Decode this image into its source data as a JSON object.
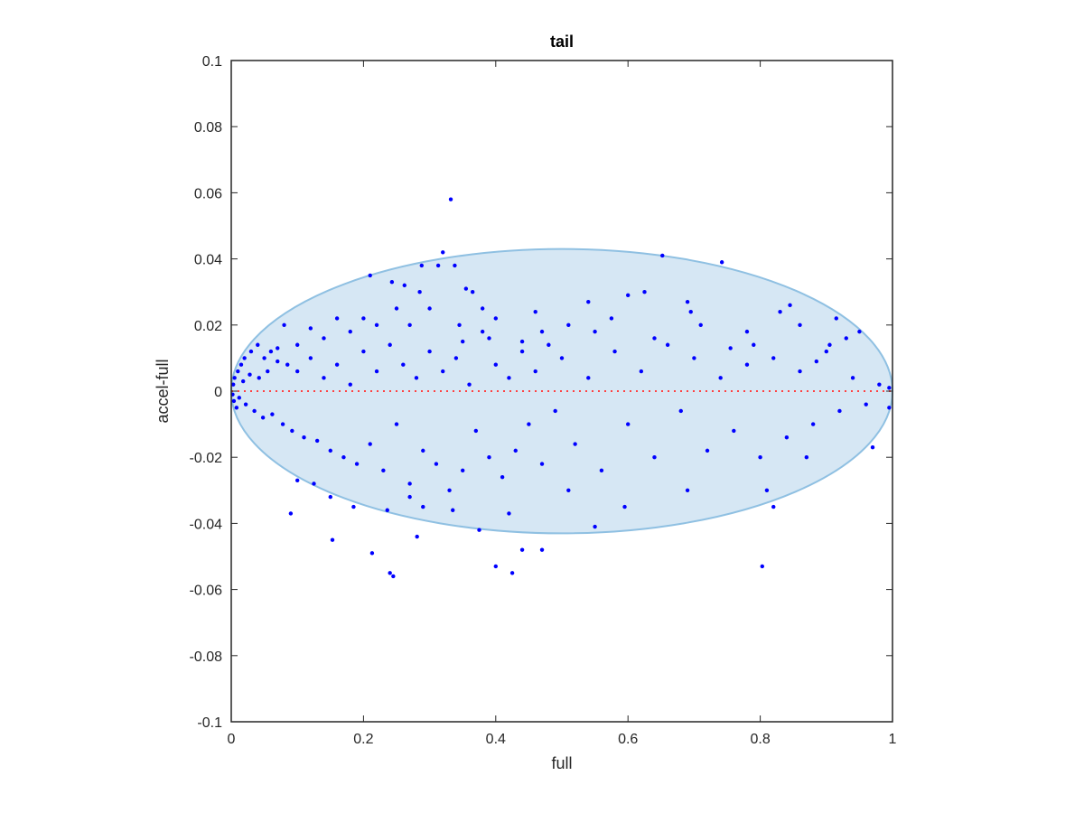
{
  "chart_data": {
    "type": "scatter",
    "title": "tail",
    "xlabel": "full",
    "ylabel": "accel-full",
    "xlim": [
      0,
      1
    ],
    "ylim": [
      -0.1,
      0.1
    ],
    "x_ticks": [
      0,
      0.2,
      0.4,
      0.6,
      0.8,
      1
    ],
    "x_tick_labels": [
      "0",
      "0.2",
      "0.4",
      "0.6",
      "0.8",
      "1"
    ],
    "y_ticks": [
      -0.1,
      -0.08,
      -0.06,
      -0.04,
      -0.02,
      0,
      0.02,
      0.04,
      0.06,
      0.08,
      0.1
    ],
    "y_tick_labels": [
      "-0.1",
      "-0.08",
      "-0.06",
      "-0.04",
      "-0.02",
      "0",
      "0.02",
      "0.04",
      "0.06",
      "0.08",
      "0.1"
    ],
    "grid": false,
    "colors": {
      "points": "#0000ff",
      "ellipse_fill": "#d6e7f4",
      "ellipse_stroke": "#8fc0e2",
      "reference_line": "#ff4040",
      "axes": "#262626"
    },
    "ellipse": {
      "center": [
        0.5,
        0
      ],
      "semi_x": 0.5,
      "semi_y": 0.043
    },
    "reference_line": {
      "y": 0,
      "style": "dotted"
    },
    "series": [
      {
        "points": [
          [
            0.332,
            0.058
          ],
          [
            0.32,
            0.042
          ],
          [
            0.338,
            0.038
          ],
          [
            0.652,
            0.041
          ],
          [
            0.742,
            0.039
          ],
          [
            0.313,
            0.038
          ],
          [
            0.288,
            0.038
          ],
          [
            0.21,
            0.035
          ],
          [
            0.243,
            0.033
          ],
          [
            0.262,
            0.032
          ],
          [
            0.355,
            0.031
          ],
          [
            0.46,
            0.024
          ],
          [
            0.6,
            0.029
          ],
          [
            0.625,
            0.03
          ],
          [
            0.69,
            0.027
          ],
          [
            0.695,
            0.024
          ],
          [
            0.78,
            0.018
          ],
          [
            0.83,
            0.024
          ],
          [
            0.86,
            0.02
          ],
          [
            0.915,
            0.022
          ],
          [
            0.93,
            0.016
          ],
          [
            0.95,
            0.018
          ],
          [
            0.54,
            0.027
          ],
          [
            0.51,
            0.02
          ],
          [
            0.47,
            0.018
          ],
          [
            0.4,
            0.022
          ],
          [
            0.38,
            0.025
          ],
          [
            0.35,
            0.015
          ],
          [
            0.3,
            0.025
          ],
          [
            0.27,
            0.02
          ],
          [
            0.25,
            0.025
          ],
          [
            0.22,
            0.02
          ],
          [
            0.2,
            0.022
          ],
          [
            0.18,
            0.018
          ],
          [
            0.16,
            0.022
          ],
          [
            0.14,
            0.016
          ],
          [
            0.12,
            0.019
          ],
          [
            0.1,
            0.014
          ],
          [
            0.08,
            0.02
          ],
          [
            0.07,
            0.013
          ],
          [
            0.06,
            0.012
          ],
          [
            0.05,
            0.01
          ],
          [
            0.04,
            0.014
          ],
          [
            0.03,
            0.012
          ],
          [
            0.02,
            0.01
          ],
          [
            0.015,
            0.008
          ],
          [
            0.01,
            0.006
          ],
          [
            0.005,
            0.004
          ],
          [
            0.003,
            0.002
          ],
          [
            0.002,
            -0.001
          ],
          [
            0.004,
            -0.003
          ],
          [
            0.008,
            -0.005
          ],
          [
            0.012,
            -0.002
          ],
          [
            0.018,
            0.003
          ],
          [
            0.022,
            -0.004
          ],
          [
            0.028,
            0.005
          ],
          [
            0.035,
            -0.006
          ],
          [
            0.042,
            0.004
          ],
          [
            0.048,
            -0.008
          ],
          [
            0.055,
            0.006
          ],
          [
            0.062,
            -0.007
          ],
          [
            0.07,
            0.009
          ],
          [
            0.078,
            -0.01
          ],
          [
            0.085,
            0.008
          ],
          [
            0.092,
            -0.012
          ],
          [
            0.1,
            0.006
          ],
          [
            0.11,
            -0.014
          ],
          [
            0.12,
            0.01
          ],
          [
            0.13,
            -0.015
          ],
          [
            0.14,
            0.004
          ],
          [
            0.15,
            -0.018
          ],
          [
            0.16,
            0.008
          ],
          [
            0.17,
            -0.02
          ],
          [
            0.18,
            0.002
          ],
          [
            0.19,
            -0.022
          ],
          [
            0.2,
            0.012
          ],
          [
            0.21,
            -0.016
          ],
          [
            0.22,
            0.006
          ],
          [
            0.23,
            -0.024
          ],
          [
            0.24,
            0.014
          ],
          [
            0.25,
            -0.01
          ],
          [
            0.26,
            0.008
          ],
          [
            0.27,
            -0.028
          ],
          [
            0.28,
            0.004
          ],
          [
            0.29,
            -0.018
          ],
          [
            0.3,
            0.012
          ],
          [
            0.31,
            -0.022
          ],
          [
            0.32,
            0.006
          ],
          [
            0.33,
            -0.03
          ],
          [
            0.34,
            0.01
          ],
          [
            0.35,
            -0.024
          ],
          [
            0.36,
            0.002
          ],
          [
            0.37,
            -0.012
          ],
          [
            0.38,
            0.018
          ],
          [
            0.39,
            -0.02
          ],
          [
            0.4,
            0.008
          ],
          [
            0.41,
            -0.026
          ],
          [
            0.42,
            0.004
          ],
          [
            0.43,
            -0.018
          ],
          [
            0.44,
            0.012
          ],
          [
            0.45,
            -0.01
          ],
          [
            0.46,
            0.006
          ],
          [
            0.47,
            -0.022
          ],
          [
            0.48,
            0.014
          ],
          [
            0.49,
            -0.006
          ],
          [
            0.5,
            0.01
          ],
          [
            0.52,
            -0.016
          ],
          [
            0.54,
            0.004
          ],
          [
            0.56,
            -0.024
          ],
          [
            0.58,
            0.012
          ],
          [
            0.6,
            -0.01
          ],
          [
            0.62,
            0.006
          ],
          [
            0.64,
            -0.02
          ],
          [
            0.66,
            0.014
          ],
          [
            0.68,
            -0.006
          ],
          [
            0.7,
            0.01
          ],
          [
            0.72,
            -0.018
          ],
          [
            0.74,
            0.004
          ],
          [
            0.76,
            -0.012
          ],
          [
            0.78,
            0.008
          ],
          [
            0.8,
            -0.02
          ],
          [
            0.82,
            0.01
          ],
          [
            0.84,
            -0.014
          ],
          [
            0.86,
            0.006
          ],
          [
            0.88,
            -0.01
          ],
          [
            0.9,
            0.012
          ],
          [
            0.92,
            -0.006
          ],
          [
            0.94,
            0.004
          ],
          [
            0.96,
            -0.004
          ],
          [
            0.98,
            0.002
          ],
          [
            0.995,
            0.001
          ],
          [
            0.995,
            -0.005
          ],
          [
            0.97,
            -0.017
          ],
          [
            0.87,
            -0.02
          ],
          [
            0.81,
            -0.03
          ],
          [
            0.82,
            -0.035
          ],
          [
            0.803,
            -0.053
          ],
          [
            0.69,
            -0.03
          ],
          [
            0.595,
            -0.035
          ],
          [
            0.55,
            -0.041
          ],
          [
            0.51,
            -0.03
          ],
          [
            0.47,
            -0.048
          ],
          [
            0.44,
            -0.048
          ],
          [
            0.425,
            -0.055
          ],
          [
            0.4,
            -0.053
          ],
          [
            0.42,
            -0.037
          ],
          [
            0.375,
            -0.042
          ],
          [
            0.335,
            -0.036
          ],
          [
            0.29,
            -0.035
          ],
          [
            0.27,
            -0.032
          ],
          [
            0.281,
            -0.044
          ],
          [
            0.24,
            -0.055
          ],
          [
            0.245,
            -0.056
          ],
          [
            0.213,
            -0.049
          ],
          [
            0.153,
            -0.045
          ],
          [
            0.09,
            -0.037
          ],
          [
            0.15,
            -0.032
          ],
          [
            0.185,
            -0.035
          ],
          [
            0.236,
            -0.036
          ],
          [
            0.1,
            -0.027
          ],
          [
            0.125,
            -0.028
          ],
          [
            0.285,
            0.03
          ],
          [
            0.345,
            0.02
          ],
          [
            0.365,
            0.03
          ],
          [
            0.39,
            0.016
          ],
          [
            0.44,
            0.015
          ],
          [
            0.55,
            0.018
          ],
          [
            0.575,
            0.022
          ],
          [
            0.64,
            0.016
          ],
          [
            0.71,
            0.02
          ],
          [
            0.755,
            0.013
          ],
          [
            0.79,
            0.014
          ],
          [
            0.845,
            0.026
          ],
          [
            0.885,
            0.009
          ],
          [
            0.905,
            0.014
          ]
        ]
      }
    ]
  }
}
